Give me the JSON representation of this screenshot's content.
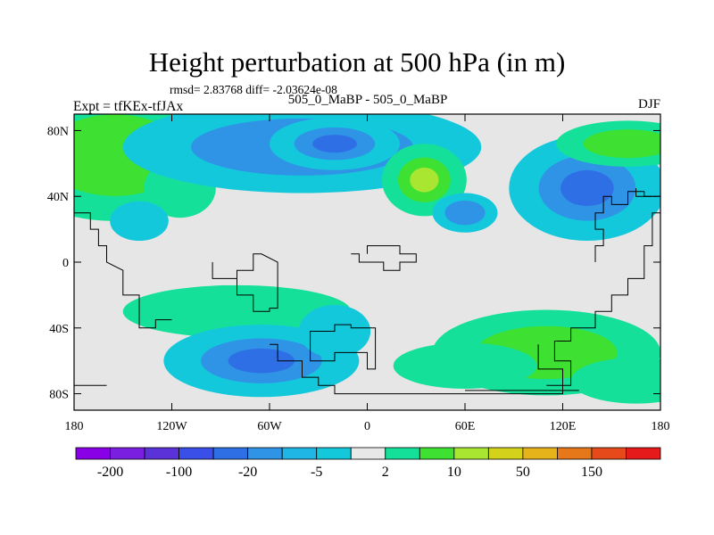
{
  "header": {
    "title": "Height perturbation at 500 hPa (in m)",
    "stats": "rmsd= 2.83768 diff= -2.03624e-08",
    "left_label": "Expt = tfKEx-tfJAx",
    "center_label": "505_0_MaBP - 505_0_MaBP",
    "right_label": "DJF"
  },
  "colors": {
    "background_fill": "#e6e6e6",
    "levels": [
      "#8a00e6",
      "#7a1fe0",
      "#5a32d8",
      "#3a4ee8",
      "#2f6fe6",
      "#2f93e6",
      "#1fb6e6",
      "#14c8dc",
      "#e8e8e8",
      "#14e09a",
      "#3ee032",
      "#a8e632",
      "#d4d21a",
      "#e6b41a",
      "#e6781a",
      "#e64a1a",
      "#e61a1a"
    ]
  },
  "chart_data": {
    "type": "heatmap",
    "projection": "cylindrical-equidistant",
    "x_ticks": [
      "180",
      "120W",
      "60W",
      "0",
      "60E",
      "120E",
      "180"
    ],
    "x_tick_values": [
      -180,
      -120,
      -60,
      0,
      60,
      120,
      180
    ],
    "y_ticks": [
      "80N",
      "40N",
      "0",
      "40S",
      "80S"
    ],
    "y_tick_values": [
      80,
      40,
      0,
      -40,
      -80
    ],
    "xlim": [
      -180,
      180
    ],
    "ylim": [
      -90,
      90
    ],
    "colorbar_labels": [
      "-200",
      "-100",
      "-20",
      "-5",
      "2",
      "10",
      "50",
      "150"
    ],
    "colorbar_label_values": [
      -200,
      -100,
      -20,
      -5,
      2,
      10,
      50,
      150
    ],
    "field_features": [
      {
        "lon": -155,
        "lat": 65,
        "value": 10
      },
      {
        "lon": -115,
        "lat": 45,
        "value": 5
      },
      {
        "lon": -140,
        "lat": 25,
        "value": -5
      },
      {
        "lon": -40,
        "lat": 70,
        "value": -10
      },
      {
        "lon": -20,
        "lat": 72,
        "value": -20
      },
      {
        "lon": 35,
        "lat": 50,
        "value": 50
      },
      {
        "lon": 60,
        "lat": 30,
        "value": -10
      },
      {
        "lon": 135,
        "lat": 45,
        "value": -30
      },
      {
        "lon": 160,
        "lat": 72,
        "value": 10
      },
      {
        "lon": -80,
        "lat": -30,
        "value": 5
      },
      {
        "lon": -65,
        "lat": -60,
        "value": -20
      },
      {
        "lon": -20,
        "lat": -42,
        "value": -5
      },
      {
        "lon": 110,
        "lat": -55,
        "value": 10
      },
      {
        "lon": 60,
        "lat": -63,
        "value": 8
      },
      {
        "lon": 165,
        "lat": -72,
        "value": 5
      }
    ]
  }
}
